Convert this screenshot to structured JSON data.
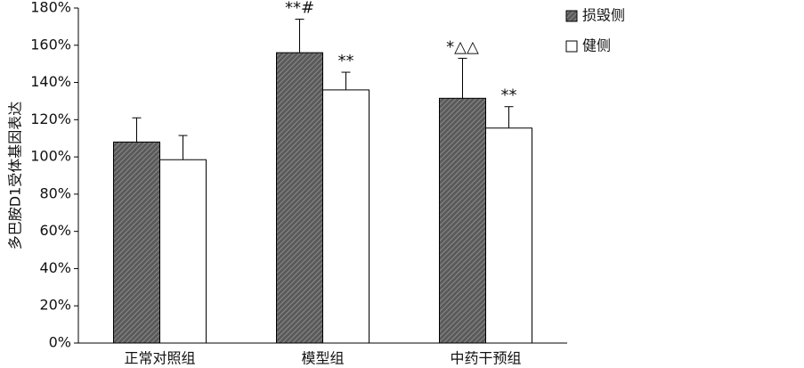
{
  "chart_data": {
    "type": "bar",
    "y_label": "多巴胺D1受体基因表达",
    "categories": [
      "正常对照组",
      "模型组",
      "中药干预组"
    ],
    "series": [
      {
        "name": "损毁侧",
        "color": "#5a5a5a",
        "pattern": "hatch",
        "values": [
          108,
          156,
          131.5
        ],
        "errors": [
          13,
          18,
          21.5
        ],
        "annotations": [
          null,
          "**#",
          "*△△"
        ]
      },
      {
        "name": "健侧",
        "color": "#ffffff",
        "pattern": "none",
        "values": [
          98.5,
          136,
          115.5
        ],
        "errors": [
          13,
          9.5,
          11.5
        ],
        "annotations": [
          null,
          "**",
          "**"
        ]
      }
    ],
    "ylim": [
      0,
      180
    ],
    "yticks": [
      {
        "value": 0,
        "label": "0%"
      },
      {
        "value": 20,
        "label": "20%"
      },
      {
        "value": 40,
        "label": "40%"
      },
      {
        "value": 60,
        "label": "60%"
      },
      {
        "value": 80,
        "label": "80%"
      },
      {
        "value": 100,
        "label": "100%"
      },
      {
        "value": 120,
        "label": "120%"
      },
      {
        "value": 140,
        "label": "140%"
      },
      {
        "value": 160,
        "label": "160%"
      },
      {
        "value": 180,
        "label": "180%"
      }
    ],
    "grid": false,
    "legend": "top-right"
  }
}
